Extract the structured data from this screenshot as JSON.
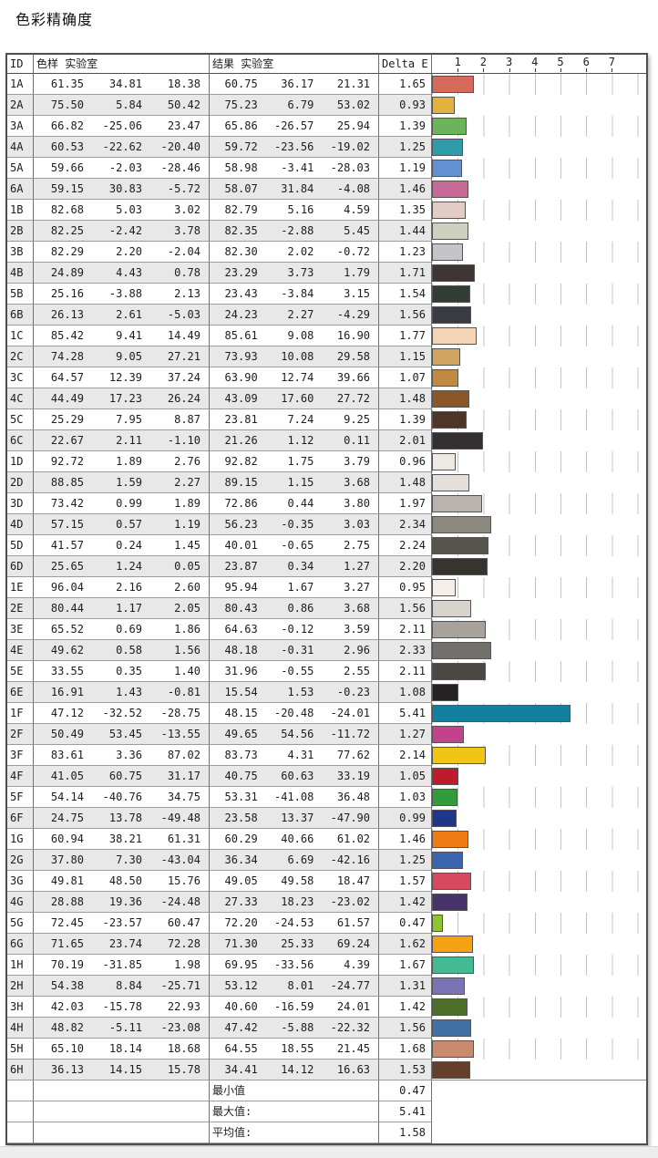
{
  "title": "色彩精确度",
  "table": {
    "headers": {
      "id": "ID",
      "sample": "色样 实验室",
      "result": "结果 实验室",
      "delta": "Delta E"
    },
    "axis_ticks": [
      "1",
      "2",
      "3",
      "4",
      "5",
      "6",
      "7"
    ],
    "rows": [
      {
        "id": "1A",
        "sample": [
          "61.35",
          "34.81",
          "18.38"
        ],
        "result": [
          "60.75",
          "36.17",
          "21.31"
        ],
        "delta": "1.65",
        "color": "#d4695c"
      },
      {
        "id": "2A",
        "sample": [
          "75.50",
          "5.84",
          "50.42"
        ],
        "result": [
          "75.23",
          "6.79",
          "53.02"
        ],
        "delta": "0.93",
        "color": "#e3b13d"
      },
      {
        "id": "3A",
        "sample": [
          "66.82",
          "-25.06",
          "23.47"
        ],
        "result": [
          "65.86",
          "-26.57",
          "25.94"
        ],
        "delta": "1.39",
        "color": "#6db35e"
      },
      {
        "id": "4A",
        "sample": [
          "60.53",
          "-22.62",
          "-20.40"
        ],
        "result": [
          "59.72",
          "-23.56",
          "-19.02"
        ],
        "delta": "1.25",
        "color": "#2e9cab"
      },
      {
        "id": "5A",
        "sample": [
          "59.66",
          "-2.03",
          "-28.46"
        ],
        "result": [
          "58.98",
          "-3.41",
          "-28.03"
        ],
        "delta": "1.19",
        "color": "#6290d2"
      },
      {
        "id": "6A",
        "sample": [
          "59.15",
          "30.83",
          "-5.72"
        ],
        "result": [
          "58.07",
          "31.84",
          "-4.08"
        ],
        "delta": "1.46",
        "color": "#c56a96"
      },
      {
        "id": "1B",
        "sample": [
          "82.68",
          "5.03",
          "3.02"
        ],
        "result": [
          "82.79",
          "5.16",
          "4.59"
        ],
        "delta": "1.35",
        "color": "#e3ccc3"
      },
      {
        "id": "2B",
        "sample": [
          "82.25",
          "-2.42",
          "3.78"
        ],
        "result": [
          "82.35",
          "-2.88",
          "5.45"
        ],
        "delta": "1.44",
        "color": "#ccd0bf"
      },
      {
        "id": "3B",
        "sample": [
          "82.29",
          "2.20",
          "-2.04"
        ],
        "result": [
          "82.30",
          "2.02",
          "-0.72"
        ],
        "delta": "1.23",
        "color": "#c6c4c9"
      },
      {
        "id": "4B",
        "sample": [
          "24.89",
          "4.43",
          "0.78"
        ],
        "result": [
          "23.29",
          "3.73",
          "1.79"
        ],
        "delta": "1.71",
        "color": "#3f3634"
      },
      {
        "id": "5B",
        "sample": [
          "25.16",
          "-3.88",
          "2.13"
        ],
        "result": [
          "23.43",
          "-3.84",
          "3.15"
        ],
        "delta": "1.54",
        "color": "#343d35"
      },
      {
        "id": "6B",
        "sample": [
          "26.13",
          "2.61",
          "-5.03"
        ],
        "result": [
          "24.23",
          "2.27",
          "-4.29"
        ],
        "delta": "1.56",
        "color": "#393a44"
      },
      {
        "id": "1C",
        "sample": [
          "85.42",
          "9.41",
          "14.49"
        ],
        "result": [
          "85.61",
          "9.08",
          "16.90"
        ],
        "delta": "1.77",
        "color": "#f3d4b5"
      },
      {
        "id": "2C",
        "sample": [
          "74.28",
          "9.05",
          "27.21"
        ],
        "result": [
          "73.93",
          "10.08",
          "29.58"
        ],
        "delta": "1.15",
        "color": "#d2a361"
      },
      {
        "id": "3C",
        "sample": [
          "64.57",
          "12.39",
          "37.24"
        ],
        "result": [
          "63.90",
          "12.74",
          "39.66"
        ],
        "delta": "1.07",
        "color": "#c18a41"
      },
      {
        "id": "4C",
        "sample": [
          "44.49",
          "17.23",
          "26.24"
        ],
        "result": [
          "43.09",
          "17.60",
          "27.72"
        ],
        "delta": "1.48",
        "color": "#8c5627"
      },
      {
        "id": "5C",
        "sample": [
          "25.29",
          "7.95",
          "8.87"
        ],
        "result": [
          "23.81",
          "7.24",
          "9.25"
        ],
        "delta": "1.39",
        "color": "#4e3527"
      },
      {
        "id": "6C",
        "sample": [
          "22.67",
          "2.11",
          "-1.10"
        ],
        "result": [
          "21.26",
          "1.12",
          "0.11"
        ],
        "delta": "2.01",
        "color": "#33302f"
      },
      {
        "id": "1D",
        "sample": [
          "92.72",
          "1.89",
          "2.76"
        ],
        "result": [
          "92.82",
          "1.75",
          "3.79"
        ],
        "delta": "0.96",
        "color": "#efe9e3"
      },
      {
        "id": "2D",
        "sample": [
          "88.85",
          "1.59",
          "2.27"
        ],
        "result": [
          "89.15",
          "1.15",
          "3.68"
        ],
        "delta": "1.48",
        "color": "#e5dfd9"
      },
      {
        "id": "3D",
        "sample": [
          "73.42",
          "0.99",
          "1.89"
        ],
        "result": [
          "72.86",
          "0.44",
          "3.80"
        ],
        "delta": "1.97",
        "color": "#b8b3ae"
      },
      {
        "id": "4D",
        "sample": [
          "57.15",
          "0.57",
          "1.19"
        ],
        "result": [
          "56.23",
          "-0.35",
          "3.03"
        ],
        "delta": "2.34",
        "color": "#8c8880"
      },
      {
        "id": "5D",
        "sample": [
          "41.57",
          "0.24",
          "1.45"
        ],
        "result": [
          "40.01",
          "-0.65",
          "2.75"
        ],
        "delta": "2.24",
        "color": "#57544c"
      },
      {
        "id": "6D",
        "sample": [
          "25.65",
          "1.24",
          "0.05"
        ],
        "result": [
          "23.87",
          "0.34",
          "1.27"
        ],
        "delta": "2.20",
        "color": "#37332f"
      },
      {
        "id": "1E",
        "sample": [
          "96.04",
          "2.16",
          "2.60"
        ],
        "result": [
          "95.94",
          "1.67",
          "3.27"
        ],
        "delta": "0.95",
        "color": "#f6efe9"
      },
      {
        "id": "2E",
        "sample": [
          "80.44",
          "1.17",
          "2.05"
        ],
        "result": [
          "80.43",
          "0.86",
          "3.68"
        ],
        "delta": "1.56",
        "color": "#d9d3cd"
      },
      {
        "id": "3E",
        "sample": [
          "65.52",
          "0.69",
          "1.86"
        ],
        "result": [
          "64.63",
          "-0.12",
          "3.59"
        ],
        "delta": "2.11",
        "color": "#a7a29c"
      },
      {
        "id": "4E",
        "sample": [
          "49.62",
          "0.58",
          "1.56"
        ],
        "result": [
          "48.18",
          "-0.31",
          "2.96"
        ],
        "delta": "2.33",
        "color": "#73716b"
      },
      {
        "id": "5E",
        "sample": [
          "33.55",
          "0.35",
          "1.40"
        ],
        "result": [
          "31.96",
          "-0.55",
          "2.55"
        ],
        "delta": "2.11",
        "color": "#4b4844"
      },
      {
        "id": "6E",
        "sample": [
          "16.91",
          "1.43",
          "-0.81"
        ],
        "result": [
          "15.54",
          "1.53",
          "-0.23"
        ],
        "delta": "1.08",
        "color": "#262324"
      },
      {
        "id": "1F",
        "sample": [
          "47.12",
          "-32.52",
          "-28.75"
        ],
        "result": [
          "48.15",
          "-20.48",
          "-24.01"
        ],
        "delta": "5.41",
        "color": "#157f9f"
      },
      {
        "id": "2F",
        "sample": [
          "50.49",
          "53.45",
          "-13.55"
        ],
        "result": [
          "49.65",
          "54.56",
          "-11.72"
        ],
        "delta": "1.27",
        "color": "#c2438b"
      },
      {
        "id": "3F",
        "sample": [
          "83.61",
          "3.36",
          "87.02"
        ],
        "result": [
          "83.73",
          "4.31",
          "77.62"
        ],
        "delta": "2.14",
        "color": "#f0c513"
      },
      {
        "id": "4F",
        "sample": [
          "41.05",
          "60.75",
          "31.17"
        ],
        "result": [
          "40.75",
          "60.63",
          "33.19"
        ],
        "delta": "1.05",
        "color": "#c01b2d"
      },
      {
        "id": "5F",
        "sample": [
          "54.14",
          "-40.76",
          "34.75"
        ],
        "result": [
          "53.31",
          "-41.08",
          "36.48"
        ],
        "delta": "1.03",
        "color": "#349b3d"
      },
      {
        "id": "6F",
        "sample": [
          "24.75",
          "13.78",
          "-49.48"
        ],
        "result": [
          "23.58",
          "13.37",
          "-47.90"
        ],
        "delta": "0.99",
        "color": "#20368b"
      },
      {
        "id": "1G",
        "sample": [
          "60.94",
          "38.21",
          "61.31"
        ],
        "result": [
          "60.29",
          "40.66",
          "61.02"
        ],
        "delta": "1.46",
        "color": "#ed7d13"
      },
      {
        "id": "2G",
        "sample": [
          "37.80",
          "7.30",
          "-43.04"
        ],
        "result": [
          "36.34",
          "6.69",
          "-42.16"
        ],
        "delta": "1.25",
        "color": "#3c63ae"
      },
      {
        "id": "3G",
        "sample": [
          "49.81",
          "48.50",
          "15.76"
        ],
        "result": [
          "49.05",
          "49.58",
          "18.47"
        ],
        "delta": "1.57",
        "color": "#d6495f"
      },
      {
        "id": "4G",
        "sample": [
          "28.88",
          "19.36",
          "-24.48"
        ],
        "result": [
          "27.33",
          "18.23",
          "-23.02"
        ],
        "delta": "1.42",
        "color": "#483367"
      },
      {
        "id": "5G",
        "sample": [
          "72.45",
          "-23.57",
          "60.47"
        ],
        "result": [
          "72.20",
          "-24.53",
          "61.57"
        ],
        "delta": "0.47",
        "color": "#8ec42d"
      },
      {
        "id": "6G",
        "sample": [
          "71.65",
          "23.74",
          "72.28"
        ],
        "result": [
          "71.30",
          "25.33",
          "69.24"
        ],
        "delta": "1.62",
        "color": "#f4a112"
      },
      {
        "id": "1H",
        "sample": [
          "70.19",
          "-31.85",
          "1.98"
        ],
        "result": [
          "69.95",
          "-33.56",
          "4.39"
        ],
        "delta": "1.67",
        "color": "#43bb92"
      },
      {
        "id": "2H",
        "sample": [
          "54.38",
          "8.84",
          "-25.71"
        ],
        "result": [
          "53.12",
          "8.01",
          "-24.77"
        ],
        "delta": "1.31",
        "color": "#7a74b5"
      },
      {
        "id": "3H",
        "sample": [
          "42.03",
          "-15.78",
          "22.93"
        ],
        "result": [
          "40.60",
          "-16.59",
          "24.01"
        ],
        "delta": "1.42",
        "color": "#4d7029"
      },
      {
        "id": "4H",
        "sample": [
          "48.82",
          "-5.11",
          "-23.08"
        ],
        "result": [
          "47.42",
          "-5.88",
          "-22.32"
        ],
        "delta": "1.56",
        "color": "#3f72a2"
      },
      {
        "id": "5H",
        "sample": [
          "65.10",
          "18.14",
          "18.68"
        ],
        "result": [
          "64.55",
          "18.55",
          "21.45"
        ],
        "delta": "1.68",
        "color": "#c98a6d"
      },
      {
        "id": "6H",
        "sample": [
          "36.13",
          "14.15",
          "15.78"
        ],
        "result": [
          "34.41",
          "14.12",
          "16.63"
        ],
        "delta": "1.53",
        "color": "#64402a"
      }
    ],
    "summary": [
      {
        "label": "最小值",
        "value": "0.47"
      },
      {
        "label": "最大值:",
        "value": "5.41"
      },
      {
        "label": "平均值:",
        "value": "1.58"
      }
    ]
  }
}
